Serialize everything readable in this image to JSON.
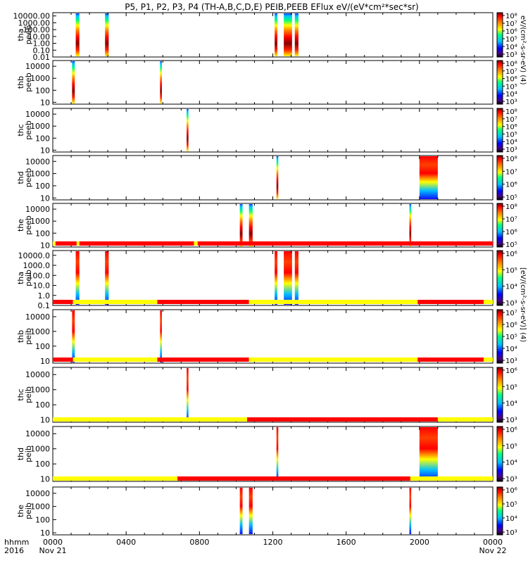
{
  "title": "P5, P1, P2, P3, P4 (TH-A,B,C,D,E) PEIB,PEEB EFlux eV/(eV*cm²*sec*sr)",
  "colorbar_label_electron": "eV/(cm²-s-sr-eV) (4)",
  "colorbar_label_ion": "[eV/(cm²-s-sr-eV)] (4)",
  "time_axis": {
    "row1_label": "hhmm",
    "row2_label": "2016",
    "ticks": [
      {
        "hour": 0,
        "label": "0000",
        "date": "Nov 21"
      },
      {
        "hour": 4,
        "label": "0400",
        "date": ""
      },
      {
        "hour": 8,
        "label": "0800",
        "date": ""
      },
      {
        "hour": 12,
        "label": "1200",
        "date": ""
      },
      {
        "hour": 16,
        "label": "1600",
        "date": ""
      },
      {
        "hour": 20,
        "label": "2000",
        "date": ""
      },
      {
        "hour": 24,
        "label": "0000",
        "date": "Nov 22"
      }
    ]
  },
  "chart_data": {
    "type": "heatmap",
    "x_unit": "hours since 2016-11-21 00:00",
    "xlim": [
      0,
      24
    ],
    "panels": [
      {
        "probe": "tha",
        "product": "peeb",
        "ylog": true,
        "ylim": [
          0.01,
          30000
        ],
        "yticks": [
          "10000.00",
          "1000.00",
          "100.00",
          "10.00",
          "1.00",
          "0.10",
          "0.01"
        ],
        "cticks": [
          "10⁸",
          "10⁷",
          "10⁶",
          "10⁵",
          "10⁴",
          "10³"
        ],
        "intervals": [
          [
            1.25,
            1.45
          ],
          [
            2.85,
            3.05
          ],
          [
            12.1,
            12.25
          ],
          [
            12.6,
            13.05
          ],
          [
            13.2,
            13.4
          ]
        ]
      },
      {
        "probe": "thb",
        "product": "peeb",
        "ylog": true,
        "ylim": [
          7,
          30000
        ],
        "yticks": [
          "10000",
          "1000",
          "100",
          "10"
        ],
        "cticks": [
          "10⁸",
          "10⁷",
          "10⁶",
          "10⁵",
          "10⁴",
          "10³"
        ],
        "intervals": [
          [
            1.05,
            1.2
          ],
          [
            5.85,
            5.95
          ]
        ]
      },
      {
        "probe": "thc",
        "product": "peeb",
        "ylog": true,
        "ylim": [
          7,
          30000
        ],
        "yticks": [
          "10000",
          "1000",
          "100",
          "10"
        ],
        "cticks": [
          "10⁸",
          "10⁷",
          "10⁶",
          "10⁵",
          "10⁴",
          "10³"
        ],
        "intervals": [
          [
            7.3,
            7.4
          ]
        ]
      },
      {
        "probe": "thd",
        "product": "peeb",
        "ylog": true,
        "ylim": [
          7,
          30000
        ],
        "yticks": [
          "10000",
          "1000",
          "100",
          "10"
        ],
        "cticks": [
          "10⁸",
          "10⁷",
          "10⁶",
          "10⁵"
        ],
        "intervals": [
          [
            12.2,
            12.3
          ],
          [
            20.0,
            21.0
          ]
        ]
      },
      {
        "probe": "the",
        "product": "peeb",
        "ylog": true,
        "ylim": [
          7,
          30000
        ],
        "yticks": [
          "10000",
          "1000",
          "100",
          "10"
        ],
        "cticks": [
          "10⁸",
          "10⁷",
          "10⁶",
          "10⁵"
        ],
        "intervals": [
          [
            10.2,
            10.35
          ],
          [
            10.7,
            10.9
          ],
          [
            19.45,
            19.55
          ]
        ]
      },
      {
        "probe": "tha",
        "product": "peib",
        "ylog": true,
        "ylim": [
          0.1,
          30000
        ],
        "yticks": [
          "10000.0",
          "1000.0",
          "100.0",
          "10.0",
          "1.0",
          "0.1"
        ],
        "cticks": [
          "10⁶",
          "10⁵",
          "10⁴",
          "10³"
        ],
        "intervals": [
          [
            1.25,
            1.45
          ],
          [
            2.85,
            3.05
          ],
          [
            12.1,
            12.25
          ],
          [
            12.6,
            13.05
          ],
          [
            13.2,
            13.4
          ]
        ]
      },
      {
        "probe": "thb",
        "product": "peib",
        "ylog": true,
        "ylim": [
          7,
          30000
        ],
        "yticks": [
          "10000",
          "1000",
          "100",
          "10"
        ],
        "cticks": [
          "10⁷",
          "10⁶",
          "10⁵",
          "10⁴",
          "10³"
        ],
        "intervals": [
          [
            1.05,
            1.2
          ],
          [
            5.85,
            5.95
          ]
        ]
      },
      {
        "probe": "thc",
        "product": "peib",
        "ylog": true,
        "ylim": [
          7,
          30000
        ],
        "yticks": [
          "10000",
          "1000",
          "100",
          "10"
        ],
        "cticks": [
          "10⁶",
          "10⁵",
          "10⁴",
          "10³"
        ],
        "intervals": [
          [
            7.3,
            7.4
          ]
        ]
      },
      {
        "probe": "thd",
        "product": "peib",
        "ylog": true,
        "ylim": [
          7,
          30000
        ],
        "yticks": [
          "10000",
          "1000",
          "100",
          "10"
        ],
        "cticks": [
          "10⁶",
          "10⁵",
          "10⁴",
          "10³"
        ],
        "intervals": [
          [
            12.2,
            12.3
          ],
          [
            20.0,
            21.0
          ]
        ]
      },
      {
        "probe": "the",
        "product": "peib",
        "ylog": true,
        "ylim": [
          7,
          30000
        ],
        "yticks": [
          "10000",
          "1000",
          "100",
          "10"
        ],
        "cticks": [
          "10⁶",
          "10⁵",
          "10⁴",
          "10³"
        ],
        "intervals": [
          [
            10.2,
            10.35
          ],
          [
            10.7,
            10.9
          ],
          [
            19.45,
            19.55
          ]
        ]
      }
    ],
    "mode_bars": [
      {
        "above_panel": 5,
        "segments": [
          [
            0,
            0.15,
            "yellow"
          ],
          [
            0.15,
            1.3,
            "red"
          ],
          [
            1.3,
            1.45,
            "yellow"
          ],
          [
            1.45,
            7.7,
            "red"
          ],
          [
            7.7,
            7.9,
            "yellow"
          ],
          [
            7.9,
            24,
            "red"
          ]
        ]
      },
      {
        "above_panel": 6,
        "segments": [
          [
            0,
            1.1,
            "red"
          ],
          [
            1.1,
            5.7,
            "yellow"
          ],
          [
            5.7,
            10.7,
            "red"
          ],
          [
            10.7,
            19.9,
            "yellow"
          ],
          [
            19.9,
            23.5,
            "red"
          ],
          [
            23.5,
            24,
            "yellow"
          ]
        ]
      },
      {
        "above_panel": 7,
        "segments": [
          [
            0,
            1.1,
            "red"
          ],
          [
            1.1,
            5.7,
            "yellow"
          ],
          [
            5.7,
            10.7,
            "red"
          ],
          [
            10.7,
            19.9,
            "yellow"
          ],
          [
            19.9,
            23.5,
            "red"
          ],
          [
            23.5,
            24,
            "yellow"
          ]
        ]
      },
      {
        "above_panel": 8,
        "segments": [
          [
            0,
            10.6,
            "yellow"
          ],
          [
            10.6,
            21.0,
            "red"
          ],
          [
            21.0,
            24,
            "yellow"
          ]
        ]
      },
      {
        "above_panel": 9,
        "segments": [
          [
            0,
            6.8,
            "yellow"
          ],
          [
            6.8,
            19.5,
            "red"
          ],
          [
            19.5,
            24,
            "yellow"
          ]
        ]
      }
    ],
    "colors": {
      "yellow": "#ffff00",
      "red": "#ff0000"
    }
  }
}
